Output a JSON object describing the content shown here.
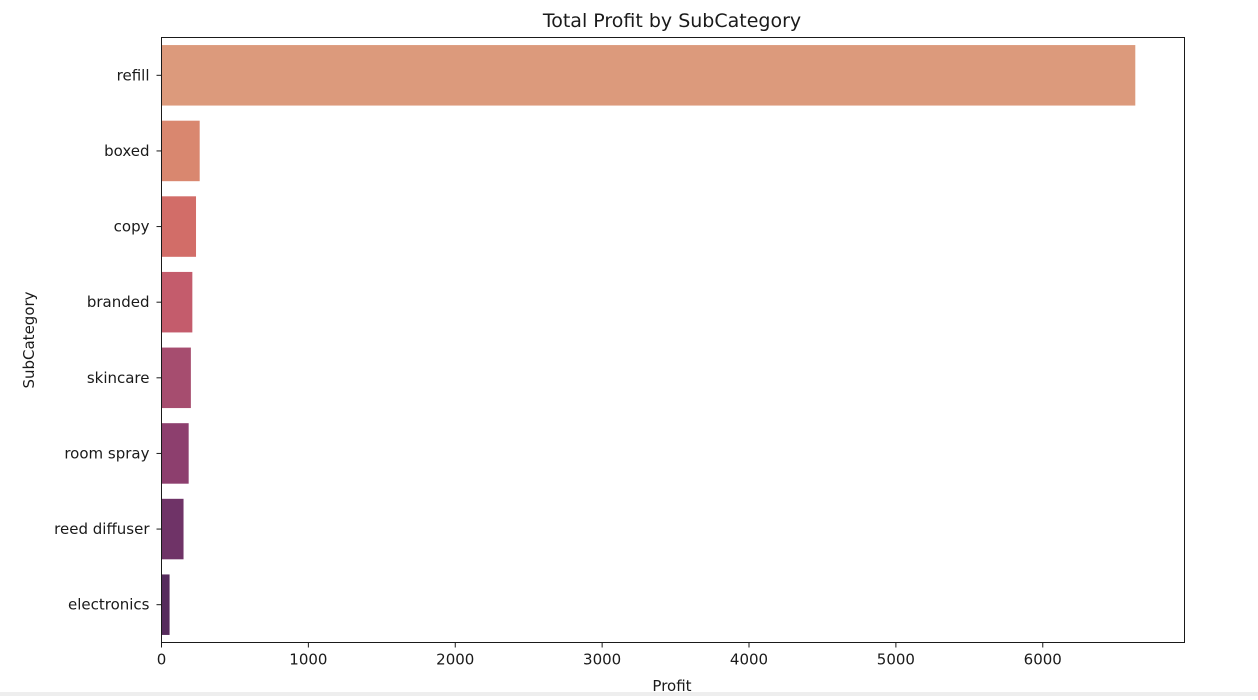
{
  "chart_data": {
    "type": "bar",
    "orientation": "horizontal",
    "title": "Total Profit by SubCategory",
    "xlabel": "Profit",
    "ylabel": "SubCategory",
    "categories": [
      "refill",
      "boxed",
      "copy",
      "branded",
      "skincare",
      "room spray",
      "reed diffuser",
      "electronics"
    ],
    "values": [
      6630,
      260,
      235,
      210,
      200,
      185,
      150,
      55
    ],
    "colors": [
      "#dc9a7c",
      "#d9876f",
      "#d26d68",
      "#c45c6c",
      "#a64d6f",
      "#8d3f6e",
      "#6f3367",
      "#562b5c"
    ],
    "xlim": [
      0,
      6965
    ],
    "xticks": [
      0,
      1000,
      2000,
      3000,
      4000,
      5000,
      6000
    ],
    "grid": false,
    "legend": "none"
  }
}
